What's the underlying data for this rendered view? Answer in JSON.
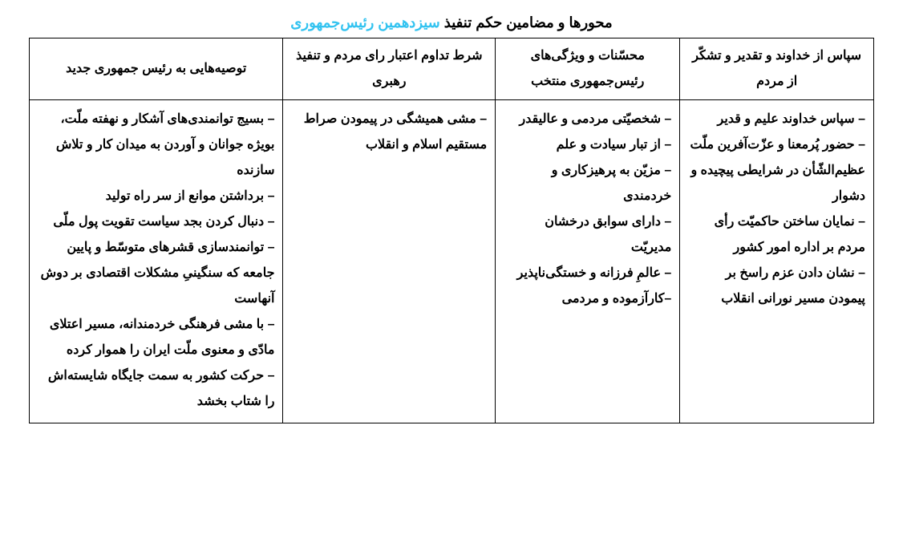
{
  "title": {
    "part1": "محورها و مضامین حکم تنفیذ ",
    "part2": "سیزدهمین رئیس‌جمهوری"
  },
  "columns": {
    "c1": "سپاس از خداوند و تقدیر و تشکّر از مردم",
    "c2": "محسّنات و ویژگی‌های رئیس‌جمهوری منتخب",
    "c3": "شرط تداوم اعتبار رای مردم و تنفیذ رهبری",
    "c4": "توصیه‌هایی به رئیس جمهوری جدید"
  },
  "rows": {
    "r1": "– سپاس خداوند علیم و قدیر\n– حضور پُرمعنا و عزّت‌آفرین ملّت عظیم‌الشّأن در شرایطی پیچیده و دشوار\n– نمایان ساختن حاکمیّت رأی مردم بر اداره امور کشور\n– نشان دادن عزم راسخ بر پیمودن مسیر نورانی انقلاب",
    "r2": "– شخصیّتی مردمی و عالیقدر\n– از تبار سیادت و علم\n– مزیّن به پرهیزکاری و خردمندی\n– دارای سوابق درخشان مدیریّت\n– عالمِ فرزانه و خستگی‌ناپذیر\n–کارآزموده و مردمی",
    "r3": "– مشی همیشگی در پیمودن صراط مستقیم اسلام و انقلاب",
    "r4": "– بسیج توانمندی‌های آشکار و نهفته ملّت، بویژه جوانان و آوردن به میدان کار و تلاش سازنده\n– برداشتن موانع از سر راه تولید\n– دنبال کردن بجد سیاست تقویت پول ملّی\n– توانمندسازی قشرهای متوسّط و پایین جامعه که سنگینیِ مشکلات اقتصادی بر دوش آنهاست\n– با مشی فرهنگی خردمندانه، مسیر اعتلای مادّی و معنوی ملّت ایران را هموار کرده\n– حرکت کشور به سمت جایگاه شایسته‌اش را شتاب بخشد"
  },
  "styling": {
    "title_color": "#000000",
    "highlight_color": "#33c3f0",
    "border_color": "#000000",
    "font_family": "Tahoma",
    "cell_fontsize": 16,
    "header_fontsize": 16,
    "title_fontsize": 18,
    "line_height": 2.0,
    "background": "#ffffff"
  }
}
